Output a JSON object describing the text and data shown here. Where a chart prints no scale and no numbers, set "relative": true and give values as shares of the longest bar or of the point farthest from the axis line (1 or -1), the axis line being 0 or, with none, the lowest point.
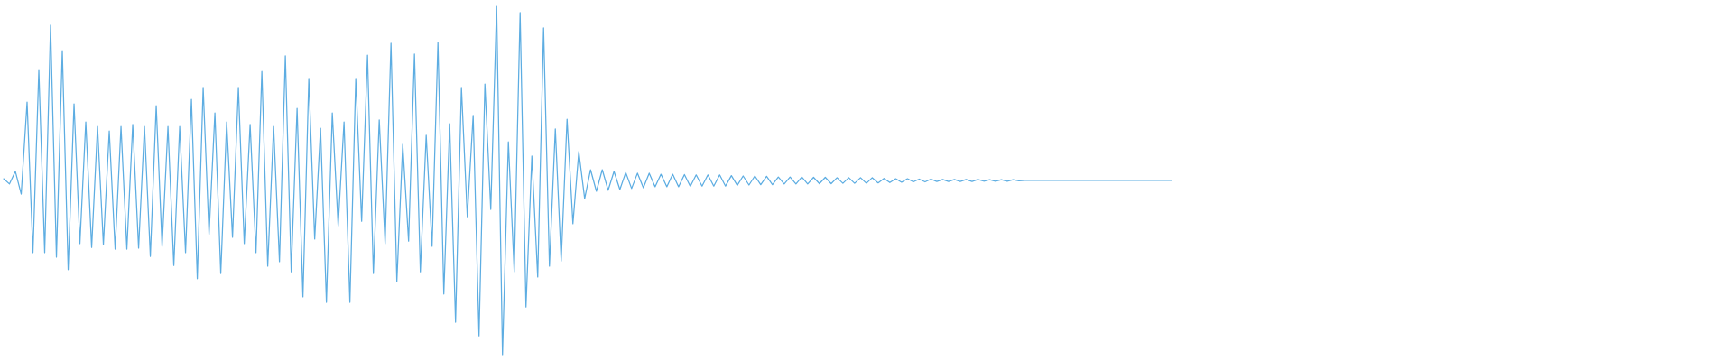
{
  "chart_data": {
    "type": "line",
    "relative": true,
    "color": "#5dade2",
    "categories": [
      null,
      null,
      null,
      null,
      null,
      null,
      null,
      null,
      null,
      null,
      null,
      null,
      null,
      null,
      null,
      null,
      null,
      null,
      null,
      null,
      null,
      null,
      null,
      null,
      null,
      null,
      null,
      null,
      null,
      null,
      null,
      null,
      null,
      null,
      null,
      null,
      null,
      null,
      null,
      null,
      null,
      null,
      null,
      null,
      null,
      null,
      null,
      null,
      null,
      null,
      null,
      null,
      null,
      null,
      null,
      null,
      null,
      null,
      null,
      null,
      null,
      null,
      null,
      null,
      null,
      null,
      null,
      null,
      null,
      null,
      null,
      null,
      null,
      null,
      null,
      null,
      null,
      null,
      null,
      null,
      null,
      null,
      null,
      null,
      null,
      null,
      null,
      null,
      null,
      null,
      null,
      null,
      null,
      null,
      null,
      null,
      null,
      null,
      null,
      null,
      null,
      null,
      null,
      null,
      null,
      null,
      null,
      null,
      null,
      null,
      null,
      null,
      null,
      null,
      null,
      null,
      null,
      null,
      null,
      null,
      null,
      null,
      null,
      null,
      null,
      null,
      null,
      null,
      null,
      null,
      null,
      null,
      null,
      null,
      null,
      null,
      null,
      null,
      null,
      null,
      null,
      null,
      null,
      null,
      null,
      null,
      null,
      null,
      null,
      null,
      null,
      null,
      null,
      null,
      null,
      null,
      null,
      null,
      null,
      null,
      null,
      null,
      null,
      null,
      null,
      null,
      null,
      null,
      null,
      null,
      null,
      null,
      null,
      null,
      null,
      null,
      null,
      null,
      null,
      null,
      null,
      null,
      null,
      null,
      null,
      null,
      null,
      null,
      null,
      null,
      null,
      null,
      null,
      null,
      null,
      null,
      null,
      null,
      null,
      null
    ],
    "values": [
      0.505,
      0.49,
      0.526,
      0.461,
      0.725,
      0.293,
      0.816,
      0.293,
      0.946,
      0.28,
      0.873,
      0.244,
      0.72,
      0.319,
      0.668,
      0.308,
      0.655,
      0.316,
      0.642,
      0.303,
      0.655,
      0.303,
      0.661,
      0.306,
      0.655,
      0.282,
      0.715,
      0.311,
      0.655,
      0.256,
      0.655,
      0.293,
      0.733,
      0.218,
      0.767,
      0.345,
      0.694,
      0.233,
      0.668,
      0.337,
      0.767,
      0.319,
      0.661,
      0.293,
      0.813,
      0.254,
      0.655,
      0.267,
      0.858,
      0.238,
      0.707,
      0.166,
      0.793,
      0.332,
      0.65,
      0.15,
      0.694,
      0.37,
      0.668,
      0.15,
      0.793,
      0.383,
      0.86,
      0.233,
      0.674,
      0.319,
      0.894,
      0.21,
      0.604,
      0.326,
      0.863,
      0.238,
      0.63,
      0.311,
      0.896,
      0.174,
      0.663,
      0.093,
      0.767,
      0.396,
      0.687,
      0.054,
      0.777,
      0.417,
      1.0,
      0.0,
      0.611,
      0.238,
      0.982,
      0.137,
      0.57,
      0.223,
      0.938,
      0.254,
      0.648,
      0.269,
      0.676,
      0.376,
      0.583,
      0.448,
      0.531,
      0.469,
      0.531,
      0.472,
      0.526,
      0.474,
      0.523,
      0.477,
      0.521,
      0.479,
      0.521,
      0.482,
      0.518,
      0.482,
      0.518,
      0.482,
      0.517,
      0.483,
      0.516,
      0.484,
      0.516,
      0.484,
      0.516,
      0.484,
      0.514,
      0.486,
      0.513,
      0.487,
      0.513,
      0.488,
      0.512,
      0.488,
      0.51,
      0.49,
      0.51,
      0.49,
      0.51,
      0.49,
      0.509,
      0.491,
      0.509,
      0.491,
      0.508,
      0.492,
      0.508,
      0.492,
      0.508,
      0.492,
      0.508,
      0.493,
      0.506,
      0.494,
      0.505,
      0.495,
      0.505,
      0.496,
      0.504,
      0.496,
      0.504,
      0.497,
      0.503,
      0.497,
      0.503,
      0.497,
      0.503,
      0.497,
      0.503,
      0.498,
      0.502,
      0.498,
      0.502,
      0.498,
      0.502,
      0.499,
      0.5,
      0.5,
      0.5,
      0.5,
      0.5,
      0.5,
      0.5,
      0.5,
      0.5,
      0.5,
      0.5,
      0.5,
      0.5,
      0.5,
      0.5,
      0.5,
      0.5,
      0.5,
      0.5,
      0.5,
      0.5,
      0.5,
      0.5,
      0.5,
      0.5,
      0.5
    ]
  }
}
